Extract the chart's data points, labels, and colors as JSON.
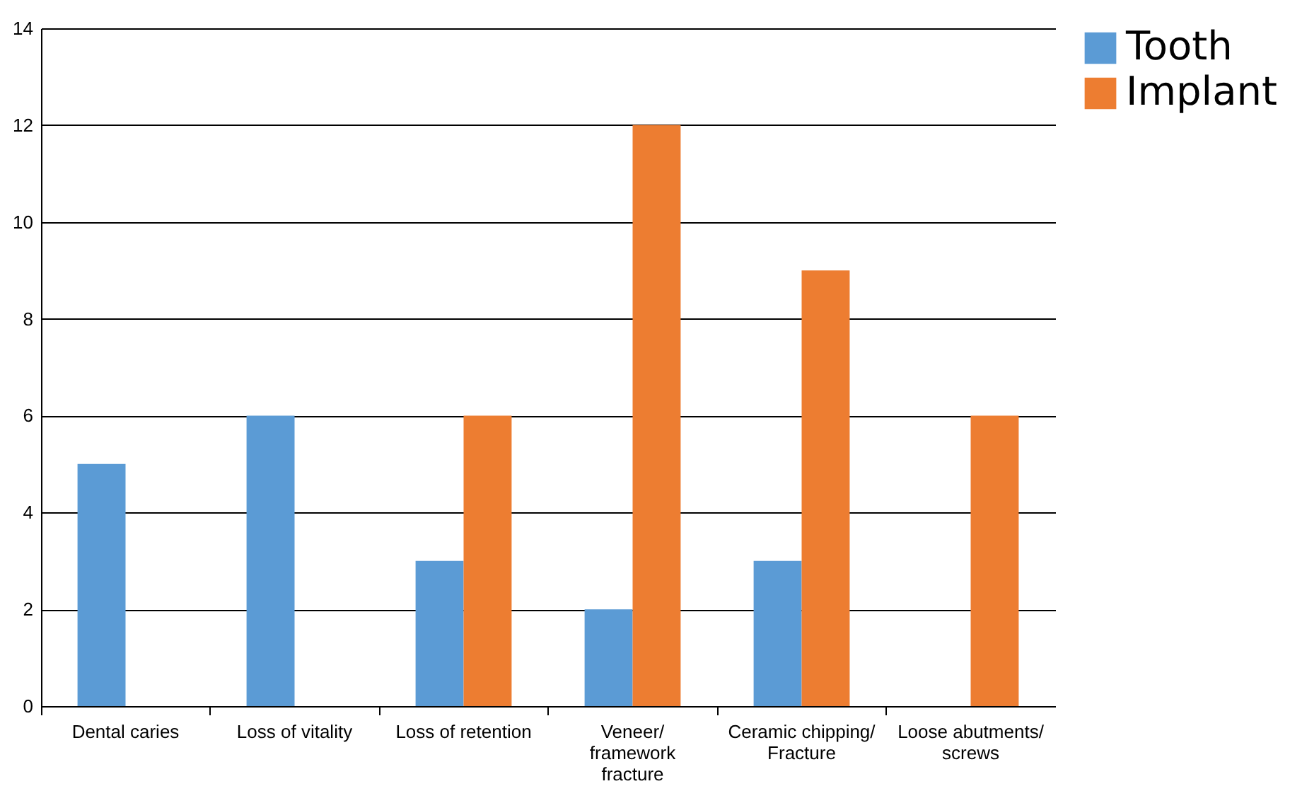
{
  "chart_data": {
    "type": "bar",
    "categories": [
      "Dental caries",
      "Loss of vitality",
      "Loss of retention",
      "Veneer/ framework fracture",
      "Ceramic chipping/ Fracture",
      "Loose abutments/ screws"
    ],
    "series": [
      {
        "name": "Tooth",
        "color": "#5b9bd5",
        "values": [
          5,
          6,
          3,
          2,
          3,
          0
        ]
      },
      {
        "name": "Implant",
        "color": "#ed7d31",
        "values": [
          0,
          0,
          6,
          12,
          9,
          6
        ]
      }
    ],
    "ylim": [
      0,
      14
    ],
    "yticks": [
      0,
      2,
      4,
      6,
      8,
      10,
      12,
      14
    ],
    "grid": "y",
    "legend": "right"
  }
}
